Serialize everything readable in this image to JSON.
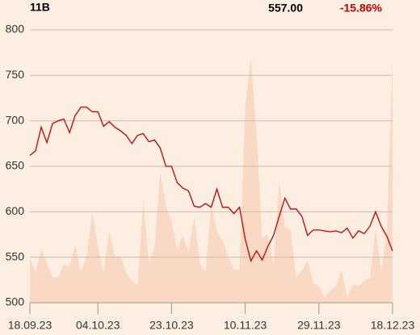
{
  "chart_data": {
    "type": "line",
    "header": {
      "label": "11B",
      "price": "557.00",
      "change": "-15.86%",
      "change_color": "#cc0000"
    },
    "categories": [
      "18.09.23",
      null,
      null,
      null,
      null,
      null,
      null,
      null,
      null,
      null,
      null,
      null,
      "04.10.23",
      null,
      null,
      null,
      null,
      null,
      null,
      null,
      null,
      null,
      null,
      null,
      null,
      "23.10.23",
      null,
      null,
      null,
      null,
      null,
      null,
      null,
      null,
      null,
      null,
      null,
      null,
      "10.11.23",
      null,
      null,
      null,
      null,
      null,
      null,
      null,
      null,
      null,
      null,
      null,
      null,
      "29.11.23",
      null,
      null,
      null,
      null,
      null,
      null,
      null,
      null,
      null,
      null,
      null,
      null,
      "18.12.23"
    ],
    "series": [
      {
        "kind": "area",
        "color": "#f9d9c3",
        "values": [
          549,
          534,
          559,
          544,
          528,
          528,
          542,
          540,
          564,
          534,
          551,
          600,
          562,
          534,
          578,
          551,
          551,
          533,
          524,
          520,
          611,
          544,
          562,
          644,
          607,
          589,
          559,
          574,
          556,
          595,
          543,
          534,
          607,
          578,
          569,
          551,
          536,
          536,
          716,
          769,
          686,
          571,
          575,
          540,
          635,
          583,
          580,
          527,
          536,
          546,
          522,
          518,
          506,
          513,
          518,
          536,
          506,
          520,
          518,
          524,
          527,
          580,
          536,
          575,
          766
        ]
      },
      {
        "kind": "line",
        "color": "#cc0000",
        "values": [
          662,
          667,
          693,
          676,
          697,
          700,
          702,
          687,
          706,
          715,
          715,
          710,
          710,
          694,
          699,
          693,
          689,
          684,
          675,
          684,
          686,
          677,
          679,
          670,
          650,
          650,
          632,
          626,
          623,
          606,
          605,
          609,
          605,
          625,
          605,
          605,
          598,
          605,
          570,
          546,
          557,
          547,
          562,
          574,
          595,
          615,
          603,
          603,
          595,
          574,
          580,
          580,
          579,
          578,
          579,
          577,
          582,
          571,
          579,
          576,
          584,
          600,
          584,
          573,
          557
        ]
      }
    ],
    "ylim": [
      500,
      800
    ],
    "yticks": [
      500,
      550,
      600,
      650,
      700,
      750,
      800
    ],
    "grid": true
  }
}
